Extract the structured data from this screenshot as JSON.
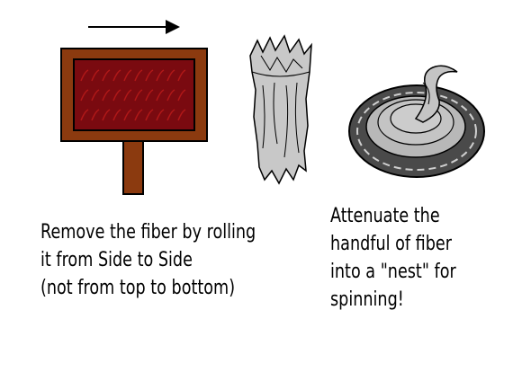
{
  "colors": {
    "frame": "#8b3a0f",
    "card_cloth": "#7a0a10",
    "card_teeth": "#b01818",
    "fiber_gray": "#c8c8c8",
    "nest_outer": "#4a4a4a",
    "nest_inner": "#b8b8b8",
    "ink": "#000000"
  },
  "icons": {
    "arrow": "right-arrow-icon",
    "card": "hand-carder-icon",
    "rolag": "fiber-roll-icon",
    "nest": "fiber-nest-icon"
  },
  "captions": {
    "left": [
      "Remove the fiber by rolling",
      "it from Side to Side",
      "(not from top to bottom)"
    ],
    "right": [
      "Attenuate the",
      "handful of fiber",
      "into a \"nest\" for",
      "spinning!"
    ]
  }
}
